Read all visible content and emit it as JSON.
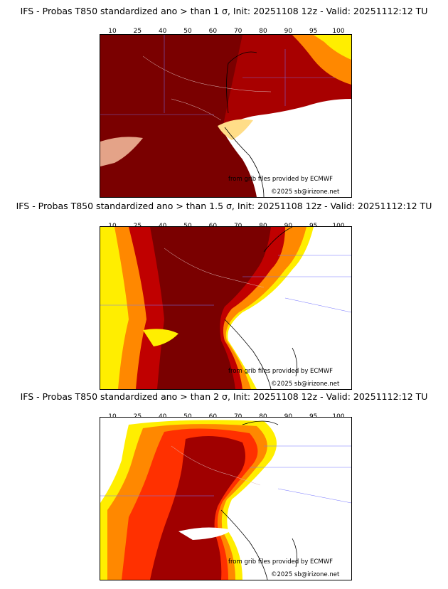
{
  "colorbar": {
    "ticks": [
      "10",
      "25",
      "40",
      "50",
      "60",
      "70",
      "80",
      "90",
      "95",
      "100"
    ],
    "colors": [
      "#ffff00",
      "#ffcc00",
      "#ffa500",
      "#ff8800",
      "#ff6600",
      "#ff3300",
      "#e60000",
      "#b30000",
      "#800000"
    ]
  },
  "panels": [
    {
      "title": "IFS - Probas T850  standardized ano > than 1 σ, Init: 20251108 12z - Valid: 20251112:12 TU",
      "threshold_sigma": 1,
      "credit_source": "from grib files provided by ECMWF",
      "credit_site": "©2025 sb@irizone.net"
    },
    {
      "title": "IFS - Probas T850  standardized ano > than 1.5 σ, Init: 20251108 12z - Valid: 20251112:12 TU",
      "threshold_sigma": 1.5,
      "credit_source": "from grib files provided by ECMWF",
      "credit_site": "©2025 sb@irizone.net"
    },
    {
      "title": "IFS - Probas T850  standardized ano > than 2 σ, Init: 20251108 12z - Valid: 20251112:12 TU",
      "threshold_sigma": 2,
      "credit_source": "from grib files provided by ECMWF",
      "credit_site": "©2025 sb@irizone.net"
    }
  ],
  "palette": {
    "dark": "#6b0000",
    "red": "#c00000",
    "orange": "#ff5000",
    "amber": "#ff9900",
    "yellow": "#ffee00",
    "border": "#7777ff",
    "coast": "#000000"
  }
}
